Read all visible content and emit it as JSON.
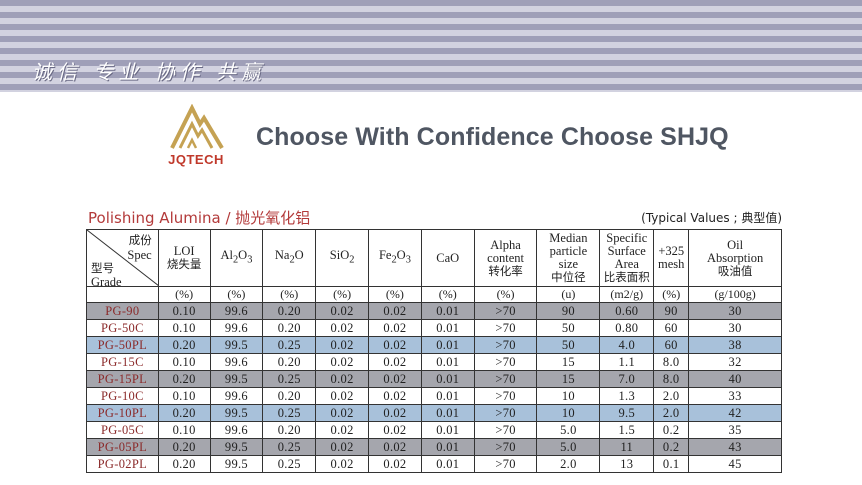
{
  "banner": {
    "slogan": "诚信 专业 协作 共赢"
  },
  "logo": {
    "text": "JQTECH",
    "color": "#c5a253"
  },
  "headline": "Choose With Confidence Choose SHJQ",
  "section": {
    "title": "Polishing Alumina  /  抛光氧化铝",
    "note": "(Typical  Values ; 典型值)"
  },
  "table": {
    "corner": {
      "spec_cn": "成份",
      "spec_en": "Spec",
      "grade_cn": "型号",
      "grade_en": "Grade"
    },
    "headers": [
      {
        "en": "LOI",
        "cn": "烧失量"
      },
      {
        "en": "Al2O3",
        "cn": ""
      },
      {
        "en": "Na2O",
        "cn": ""
      },
      {
        "en": "SiO2",
        "cn": ""
      },
      {
        "en": "Fe2O3",
        "cn": ""
      },
      {
        "en": "CaO",
        "cn": ""
      },
      {
        "en": "Alpha content",
        "cn": "转化率"
      },
      {
        "en": "Median particle size",
        "cn": "中位径"
      },
      {
        "en": "Specific Surface Area",
        "cn": "比表面积"
      },
      {
        "en": "+325 mesh",
        "cn": ""
      },
      {
        "en": "Oil Absorption",
        "cn": "吸油值"
      }
    ],
    "units": [
      "(%)",
      "(%)",
      "(%)",
      "(%)",
      "(%)",
      "(%)",
      "(%)",
      "(u)",
      "(m2/g)",
      "(%)",
      "(g/100g)"
    ],
    "rows": [
      {
        "grade": "PG-90",
        "values": [
          "0.10",
          "99.6",
          "0.20",
          "0.02",
          "0.02",
          "0.01",
          ">70",
          "90",
          "0.60",
          "90",
          "30"
        ]
      },
      {
        "grade": "PG-50C",
        "values": [
          "0.10",
          "99.6",
          "0.20",
          "0.02",
          "0.02",
          "0.01",
          ">70",
          "50",
          "0.80",
          "60",
          "30"
        ]
      },
      {
        "grade": "PG-50PL",
        "values": [
          "0.20",
          "99.5",
          "0.25",
          "0.02",
          "0.02",
          "0.01",
          ">70",
          "50",
          "4.0",
          "60",
          "38"
        ]
      },
      {
        "grade": "PG-15C",
        "values": [
          "0.10",
          "99.6",
          "0.20",
          "0.02",
          "0.02",
          "0.01",
          ">70",
          "15",
          "1.1",
          "8.0",
          "32"
        ]
      },
      {
        "grade": "PG-15PL",
        "values": [
          "0.20",
          "99.5",
          "0.25",
          "0.02",
          "0.02",
          "0.01",
          ">70",
          "15",
          "7.0",
          "8.0",
          "40"
        ]
      },
      {
        "grade": "PG-10C",
        "values": [
          "0.10",
          "99.6",
          "0.20",
          "0.02",
          "0.02",
          "0.01",
          ">70",
          "10",
          "1.3",
          "2.0",
          "33"
        ]
      },
      {
        "grade": "PG-10PL",
        "values": [
          "0.20",
          "99.5",
          "0.25",
          "0.02",
          "0.02",
          "0.01",
          ">70",
          "10",
          "9.5",
          "2.0",
          "42"
        ]
      },
      {
        "grade": "PG-05C",
        "values": [
          "0.10",
          "99.6",
          "0.20",
          "0.02",
          "0.02",
          "0.01",
          ">70",
          "5.0",
          "1.5",
          "0.2",
          "35"
        ]
      },
      {
        "grade": "PG-05PL",
        "values": [
          "0.20",
          "99.5",
          "0.25",
          "0.02",
          "0.02",
          "0.01",
          ">70",
          "5.0",
          "11",
          "0.2",
          "43"
        ]
      },
      {
        "grade": "PG-02PL",
        "values": [
          "0.20",
          "99.5",
          "0.25",
          "0.02",
          "0.02",
          "0.01",
          ">70",
          "2.0",
          "13",
          "0.1",
          "45"
        ]
      }
    ],
    "row_shading": [
      "dark",
      "light",
      "blue",
      "light",
      "dark",
      "light",
      "blue",
      "light",
      "dark",
      "light"
    ],
    "colors": {
      "dark": "#a5a6ad",
      "blue": "#a8c1da",
      "light": "#ffffff",
      "grade_text": "#8b2a2a"
    }
  }
}
